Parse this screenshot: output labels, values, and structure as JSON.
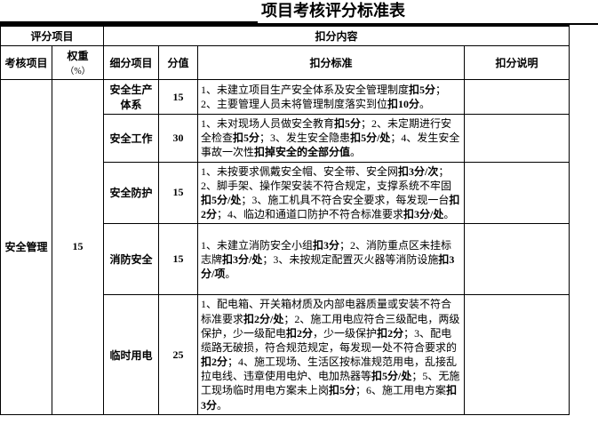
{
  "doc_title": "项目考核评分标准表",
  "group_header1": "评分项目",
  "group_header2": "扣分内容",
  "headers": {
    "h1": "考核项目",
    "h2": "权重",
    "h2_suffix": "（%）",
    "h3": "细分项目",
    "h4": "分值",
    "h5": "扣分标准",
    "h6": "扣分说明"
  },
  "category": {
    "name": "安全管理",
    "weight": "15"
  },
  "rows": [
    {
      "sub": "安全生产体系",
      "score": "15",
      "criteria": "1、未建立项目生产安全体系及安全管理制度<b>扣5分</b>； 2、主要管理人员未将管理制度落实到位<b>扣10分</b>。"
    },
    {
      "sub": "安全工作",
      "score": "30",
      "criteria": "1、未对现场人员做安全教育<b>扣5分</b>；2、未定期进行安全检查<b>扣5分</b>；3、发生安全隐患<b>扣5分/处</b>；4、发生安全事故一次性<b>扣掉安全的全部分值</b>。"
    },
    {
      "sub": "安全防护",
      "score": "15",
      "criteria": "1、未按要求佩戴安全帽、安全带、安全网<b>扣3分/次</b>；2、脚手架、操作架安装不符合规定，支撑系统不牢固<b>扣5分/处</b>；3、施工机具不符合安全要求，每发现一台<b>扣2分</b>；4、临边和通道口防护不符合标准要求<b>扣3分/处</b>。"
    },
    {
      "sub": "消防安全",
      "score": "15",
      "criteria": "1、未建立消防安全小组<b>扣3分</b>；2、消防重点区未挂标志牌<b>扣3分/处</b>；3、未按规定配置灭火器等消防设施<b>扣3分/项</b>。"
    },
    {
      "sub": "临时用电",
      "score": "25",
      "criteria": "1、配电箱、开关箱材质及内部电器质量或安装不符合标准要求<b>扣2分/处</b>；2、施工用电应符合三级配电，两级保护，少一级配电<b>扣2分</b>，少一级保护<b>扣2分</b>；3、配电缆路无破损，符合规范规定，每发现一处不符合要求的<b>扣2分</b>；4、施工现场、生活区按标准规范用电，乱接乱拉电线、违章使用电炉、电加热器等<b>扣5分/处</b>；5、无施工现场临时用电方案未上岗<b>扣5分</b>；6、施工用电方案<b>扣3分</b>。"
    }
  ]
}
